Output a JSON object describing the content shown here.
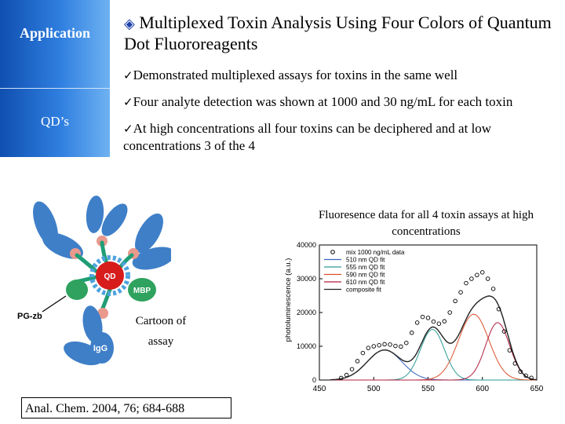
{
  "sidebar": {
    "items": [
      "Application",
      "QD’s"
    ]
  },
  "title": {
    "icon": "diamond-bullet-icon",
    "text": "Multiplexed Toxin Analysis Using Four Colors of Quantum Dot Fluororeagents"
  },
  "bullets": [
    "Demonstrated multiplexed assays for toxins in the same well",
    "Four analyte detection was shown at 1000 and 30 ng/mL for each toxin",
    "At high concentrations all four toxins can be deciphered and at low concentrations 3 of the 4"
  ],
  "bullet_icon": "checkmark-icon",
  "figure_caption": "Fluoresence data for all 4 toxin assays at high concentrations",
  "cartoon": {
    "caption": "Cartoon of assay",
    "labels": {
      "qd": "QD",
      "mbp": "MBP",
      "pgzb": "PG-zb",
      "igg": "IgG"
    },
    "colors": {
      "antibody": "#3f7fc8",
      "linker": "#1f9e76",
      "qd": "#d71c1c",
      "qd_shell": "#4ea3dd",
      "mbp": "#2ea25e",
      "hinge": "#e99a8c"
    }
  },
  "citation": "Anal. Chem. 2004, 76; 684-688",
  "chart_data": {
    "type": "line",
    "xlabel": "",
    "ylabel": "photoluminescence (a.u.)",
    "xlim": [
      450,
      650
    ],
    "ylim": [
      0,
      40000
    ],
    "xticks": [
      450,
      500,
      550,
      600,
      650
    ],
    "yticks": [
      0,
      10000,
      20000,
      30000,
      40000
    ],
    "legend_position": "top-left",
    "series": [
      {
        "name": "mix 1000 ng/mL data",
        "kind": "scatter",
        "color": "#000000",
        "x": [
          470,
          475,
          480,
          485,
          490,
          495,
          500,
          505,
          510,
          515,
          520,
          525,
          530,
          535,
          540,
          545,
          550,
          555,
          560,
          565,
          570,
          575,
          580,
          585,
          590,
          595,
          600,
          605,
          610,
          615,
          620,
          625,
          630,
          635,
          640,
          645
        ],
        "values": [
          600,
          1500,
          3200,
          5600,
          8000,
          9500,
          10000,
          10300,
          10600,
          10500,
          10100,
          9900,
          11000,
          14000,
          17000,
          18700,
          18400,
          17300,
          16700,
          17400,
          20000,
          23400,
          26000,
          28700,
          30000,
          31100,
          31900,
          30000,
          27000,
          21000,
          14400,
          8800,
          4900,
          2500,
          1300,
          650
        ]
      },
      {
        "name": "510 nm QD fit",
        "kind": "line",
        "color": "#3a63c0",
        "peak": 510,
        "amplitude": 8900,
        "sigma": 16
      },
      {
        "name": "555 nm QD fit",
        "kind": "line",
        "color": "#2a9a93",
        "peak": 554,
        "amplitude": 15000,
        "sigma": 11
      },
      {
        "name": "590 nm QD fit",
        "kind": "line",
        "color": "#d8502c",
        "peak": 592,
        "amplitude": 19500,
        "sigma": 14
      },
      {
        "name": "610 nm QD fit",
        "kind": "line",
        "color": "#b01e3c",
        "peak": 614,
        "amplitude": 17000,
        "sigma": 11
      },
      {
        "name": "composite fit",
        "kind": "line",
        "color": "#222222"
      }
    ]
  }
}
